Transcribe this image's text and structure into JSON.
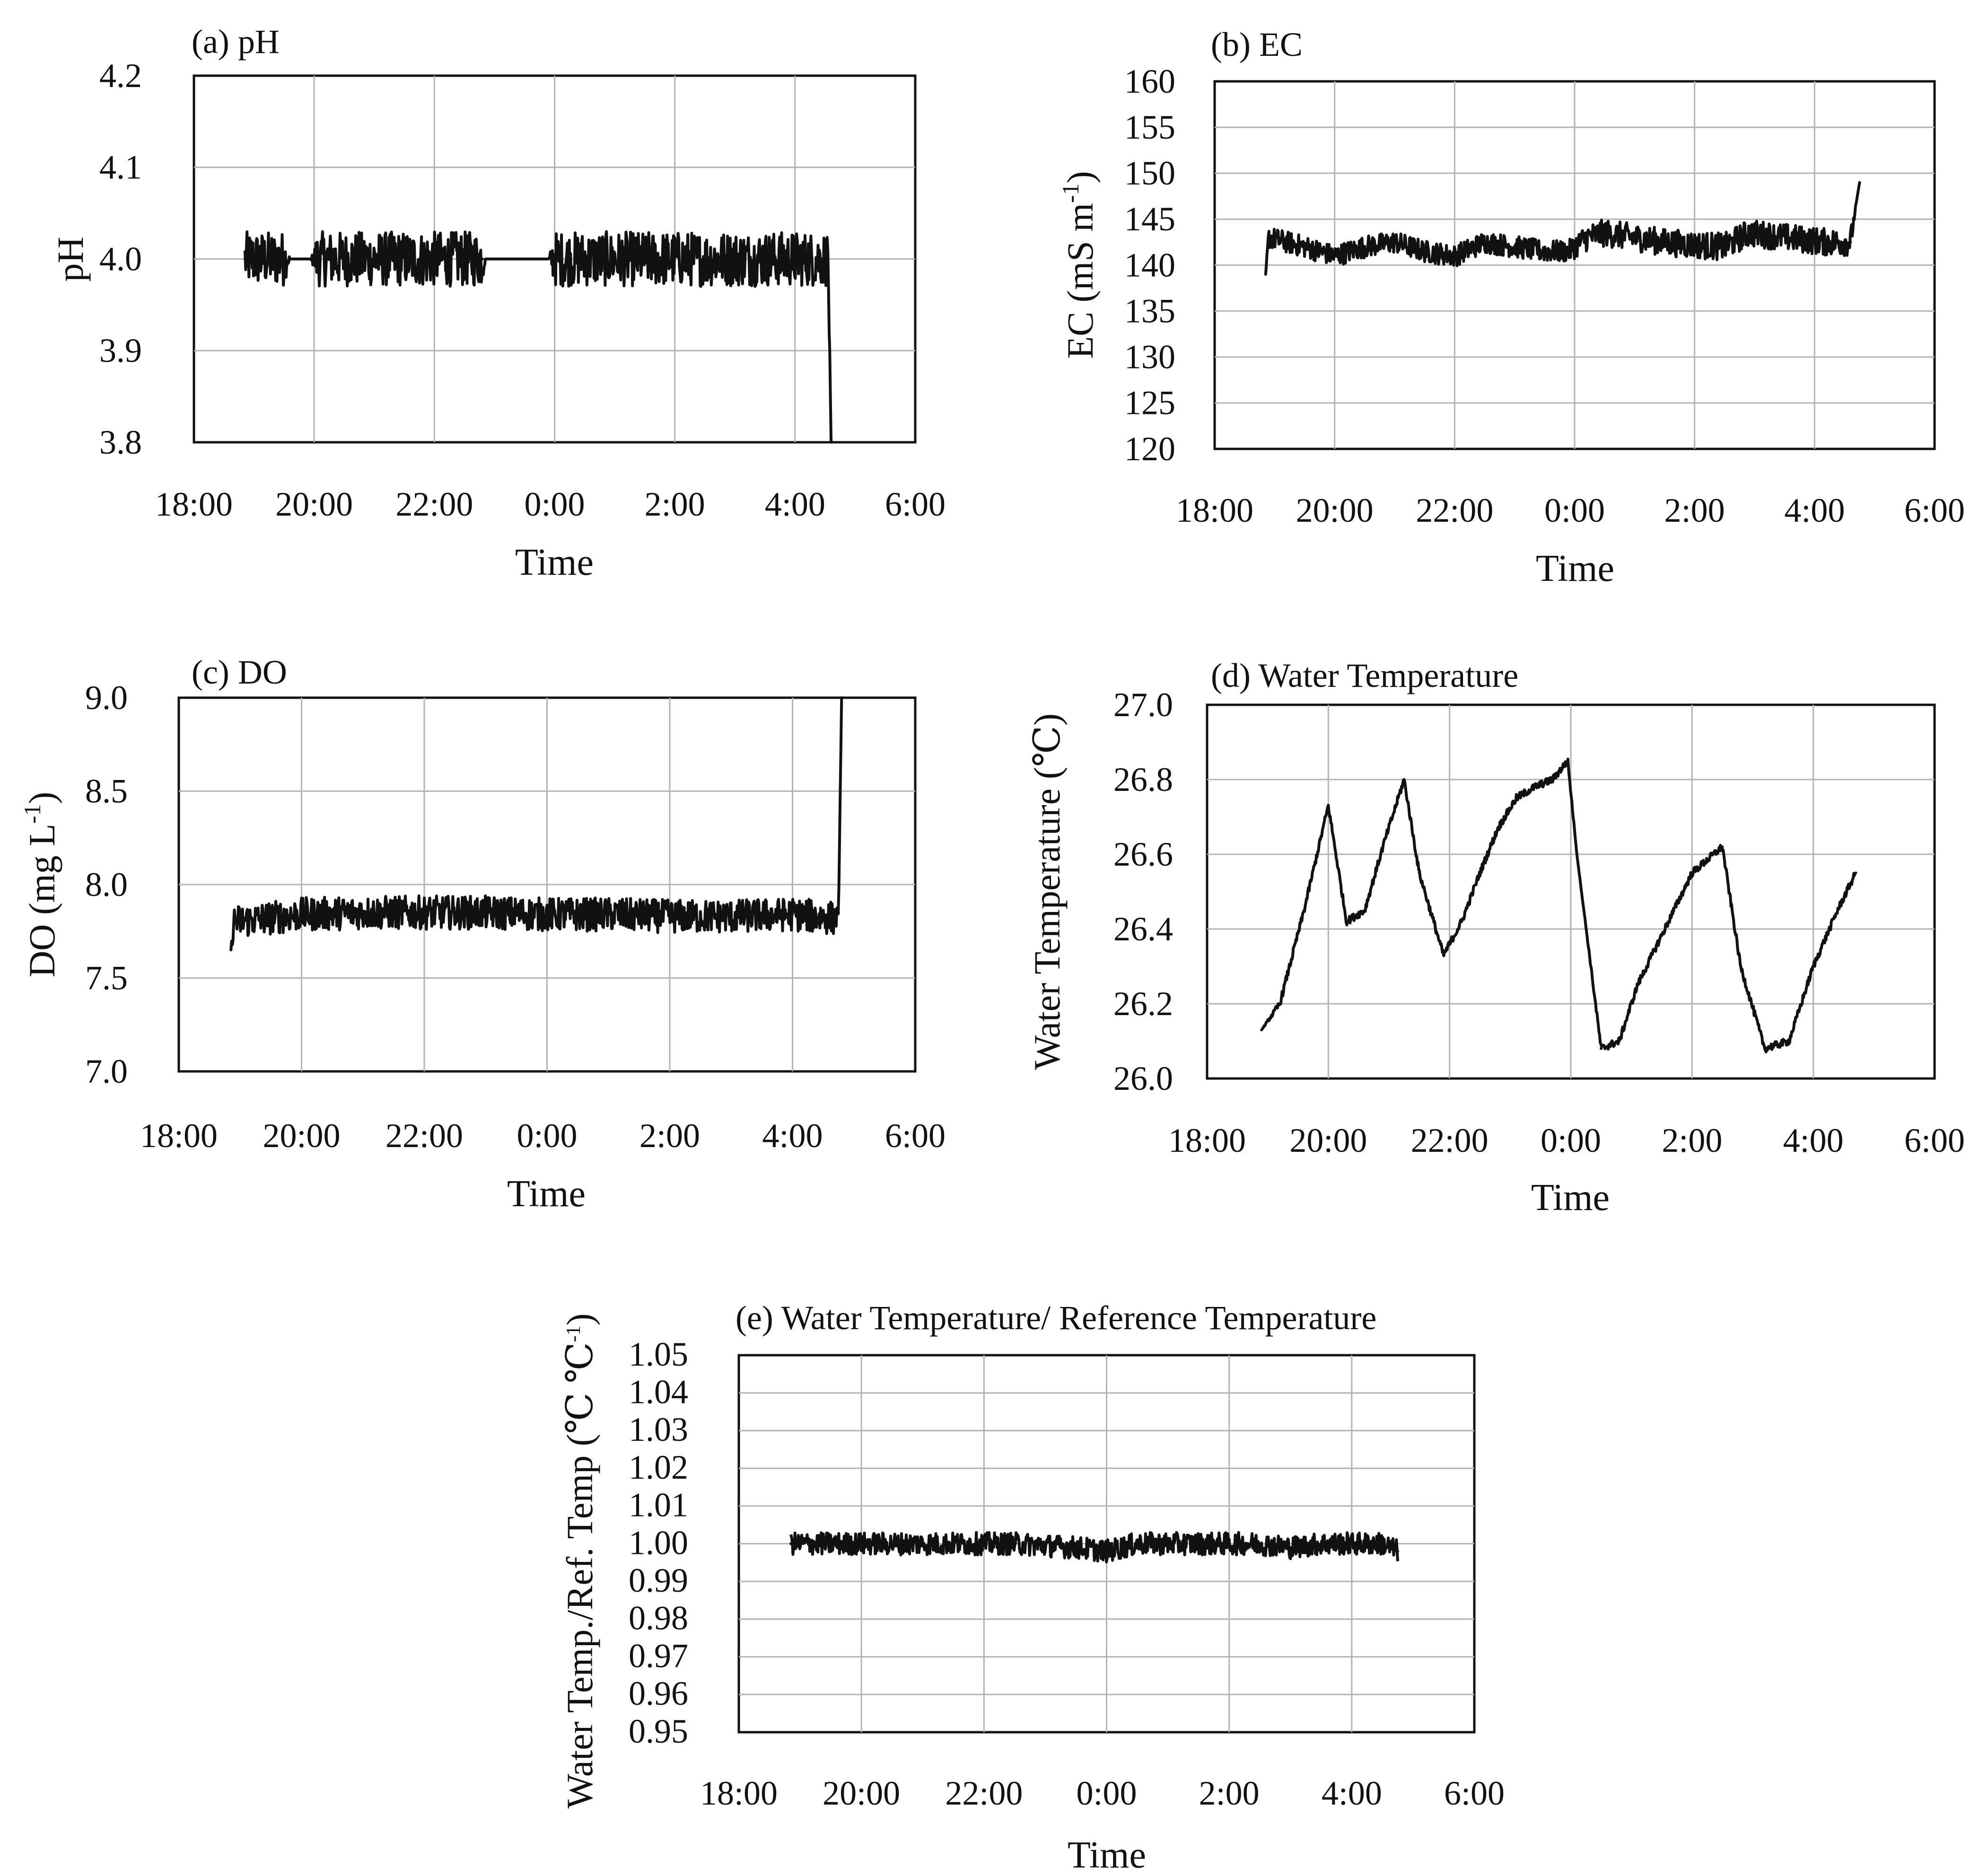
{
  "chart_data": [
    {
      "id": "a",
      "type": "line",
      "title": "(a) pH",
      "xlabel": "Time",
      "ylabel": "pH",
      "ylabel_unit": "",
      "ylabel_sup": "",
      "ylabel_tail": "",
      "x_ticks": [
        "18:00",
        "20:00",
        "22:00",
        "0:00",
        "2:00",
        "4:00",
        "6:00"
      ],
      "y_ticks": [
        "3.8",
        "3.9",
        "4.0",
        "4.1",
        "4.2"
      ],
      "xlim": [
        18,
        30
      ],
      "ylim": [
        3.8,
        4.2
      ],
      "grid": true,
      "stroke": "#111111",
      "series": [
        {
          "x": [
            18.85,
            19.5,
            19.6,
            19.95,
            20.05,
            21.2,
            21.3,
            22.8,
            22.85,
            23.9,
            24.0,
            26.2,
            26.3,
            28.1,
            28.2,
            28.55,
            28.6
          ],
          "y": [
            4.0,
            4.0,
            4.0,
            4.0,
            4.0,
            4.0,
            4.0,
            4.0,
            4.0,
            4.0,
            4.0,
            4.0,
            4.0,
            4.0,
            4.0,
            4.0,
            3.8
          ],
          "noise": [
            0.03,
            0.03,
            0,
            0,
            0.03,
            0.03,
            0.03,
            0.03,
            0,
            0,
            0.03,
            0.03,
            0.03,
            0.03,
            0.03,
            0.03,
            0
          ]
        }
      ]
    },
    {
      "id": "b",
      "type": "line",
      "title": "(b) EC",
      "xlabel": "Time",
      "ylabel": "",
      "ylabel_unit": "EC (mS m",
      "ylabel_sup": "-1",
      "ylabel_tail": ")",
      "x_ticks": [
        "18:00",
        "20:00",
        "22:00",
        "0:00",
        "2:00",
        "4:00",
        "6:00"
      ],
      "y_ticks": [
        "120",
        "125",
        "130",
        "135",
        "140",
        "145",
        "150",
        "155",
        "160"
      ],
      "xlim": [
        18,
        30
      ],
      "ylim": [
        120,
        160
      ],
      "grid": true,
      "stroke": "#111111",
      "series": [
        {
          "x": [
            18.85,
            18.9,
            19.5,
            20.0,
            20.5,
            21.0,
            21.5,
            22.0,
            22.5,
            23.0,
            23.5,
            23.9,
            24.2,
            24.5,
            25.0,
            25.5,
            26.0,
            26.5,
            26.9,
            27.3,
            27.8,
            28.2,
            28.6,
            28.7,
            28.75
          ],
          "y": [
            139,
            143,
            142,
            141,
            142,
            142.5,
            141.5,
            141,
            142.5,
            142,
            141.5,
            141.5,
            143,
            143.5,
            143,
            142.5,
            142.2,
            142,
            143.5,
            143.2,
            142.8,
            142.5,
            142.5,
            147,
            149
          ],
          "noise": [
            0,
            1.2,
            1.2,
            1.2,
            1.2,
            1.2,
            1.2,
            1.2,
            1.2,
            1.2,
            1.2,
            1.2,
            1.5,
            1.5,
            1.5,
            1.5,
            1.5,
            1.5,
            1.5,
            1.5,
            1.5,
            1.5,
            1.5,
            0,
            0
          ]
        }
      ]
    },
    {
      "id": "c",
      "type": "line",
      "title": "(c) DO",
      "xlabel": "Time",
      "ylabel": "",
      "ylabel_unit": "DO (mg L",
      "ylabel_sup": "-1",
      "ylabel_tail": ")",
      "x_ticks": [
        "18:00",
        "20:00",
        "22:00",
        "0:00",
        "2:00",
        "4:00",
        "6:00"
      ],
      "y_ticks": [
        "7.0",
        "7.5",
        "8.0",
        "8.5",
        "9.0"
      ],
      "xlim": [
        18,
        30
      ],
      "ylim": [
        7.0,
        9.0
      ],
      "grid": true,
      "stroke": "#111111",
      "series": [
        {
          "x": [
            18.85,
            18.9,
            20.0,
            21.0,
            22.0,
            23.0,
            24.0,
            25.0,
            26.0,
            27.0,
            28.0,
            28.7,
            28.75,
            28.8
          ],
          "y": [
            7.65,
            7.8,
            7.84,
            7.85,
            7.85,
            7.85,
            7.84,
            7.84,
            7.83,
            7.83,
            7.84,
            7.82,
            7.85,
            9.0
          ],
          "noise": [
            0,
            0.09,
            0.09,
            0.09,
            0.09,
            0.09,
            0.09,
            0.09,
            0.09,
            0.09,
            0.09,
            0.09,
            0,
            0
          ]
        }
      ]
    },
    {
      "id": "d",
      "type": "line",
      "title": "(d) Water Temperature",
      "xlabel": "Time",
      "ylabel": "Water Temperature (℃)",
      "ylabel_unit": "",
      "ylabel_sup": "",
      "ylabel_tail": "",
      "x_ticks": [
        "18:00",
        "20:00",
        "22:00",
        "0:00",
        "2:00",
        "4:00",
        "6:00"
      ],
      "y_ticks": [
        "26.0",
        "26.2",
        "26.4",
        "26.6",
        "26.8",
        "27.0"
      ],
      "xlim": [
        18,
        30
      ],
      "ylim": [
        26.0,
        27.0
      ],
      "grid": true,
      "stroke": "#111111",
      "series": [
        {
          "x": [
            18.9,
            19.2,
            19.6,
            20.0,
            20.3,
            20.6,
            20.9,
            21.25,
            21.5,
            21.9,
            22.2,
            22.5,
            22.8,
            23.1,
            23.4,
            23.7,
            23.95,
            24.1,
            24.5,
            24.8,
            25.1,
            25.4,
            25.7,
            26.0,
            26.5,
            26.8,
            27.2,
            27.6,
            28.0,
            28.4,
            28.7
          ],
          "y": [
            26.13,
            26.2,
            26.45,
            26.73,
            26.42,
            26.45,
            26.62,
            26.8,
            26.55,
            26.33,
            26.42,
            26.55,
            26.67,
            26.75,
            26.78,
            26.8,
            26.85,
            26.6,
            26.08,
            26.1,
            26.25,
            26.35,
            26.45,
            26.55,
            26.62,
            26.3,
            26.08,
            26.1,
            26.3,
            26.45,
            26.55
          ],
          "noise": [
            0,
            0.01,
            0.01,
            0.01,
            0.01,
            0.01,
            0.01,
            0.01,
            0.01,
            0.01,
            0.01,
            0.01,
            0.01,
            0.01,
            0.01,
            0.01,
            0.01,
            0,
            0.01,
            0.01,
            0.01,
            0.01,
            0.01,
            0.01,
            0.01,
            0.01,
            0.01,
            0.01,
            0.01,
            0.01,
            0.01
          ]
        }
      ]
    },
    {
      "id": "e",
      "type": "line",
      "title": "(e) Water Temperature/ Reference Temperature",
      "xlabel": "Time",
      "ylabel": "",
      "ylabel_unit": "Water Temp./Ref. Temp (℃ ℃",
      "ylabel_sup": "-1",
      "ylabel_tail": ")",
      "x_ticks": [
        "18:00",
        "20:00",
        "22:00",
        "0:00",
        "2:00",
        "4:00",
        "6:00"
      ],
      "y_ticks": [
        "0.95",
        "0.96",
        "0.97",
        "0.98",
        "0.99",
        "1.00",
        "1.01",
        "1.02",
        "1.03",
        "1.04",
        "1.05"
      ],
      "xlim": [
        18,
        30
      ],
      "ylim": [
        0.95,
        1.05
      ],
      "grid": true,
      "stroke": "#111111",
      "series": [
        {
          "x": [
            18.85,
            19.5,
            20.5,
            21.5,
            22.5,
            23.5,
            24.0,
            24.5,
            25.5,
            26.5,
            27.0,
            27.5,
            28.5,
            28.75
          ],
          "y": [
            1.0,
            1.0,
            1.0,
            1.0,
            1.0,
            0.999,
            0.998,
            1.0,
            1.0,
            1.0,
            0.999,
            1.0,
            1.0,
            0.998
          ],
          "noise": [
            0.003,
            0.003,
            0.003,
            0.003,
            0.003,
            0.003,
            0.003,
            0.003,
            0.003,
            0.003,
            0.003,
            0.003,
            0.003,
            0.003
          ]
        }
      ]
    }
  ]
}
